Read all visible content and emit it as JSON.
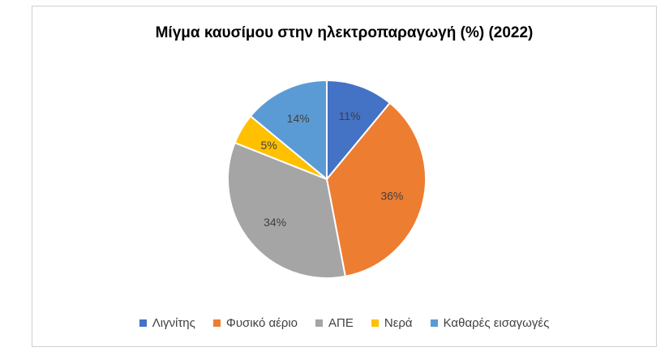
{
  "chart_data": {
    "type": "pie",
    "title": "Μίγμα καυσίμου στην ηλεκτροπαραγωγή (%) (2022)",
    "categories": [
      "Λιγνίτης",
      "Φυσικό αέριο",
      "ΑΠΕ",
      "Νερά",
      "Καθαρές εισαγωγές"
    ],
    "values": [
      11,
      36,
      34,
      5,
      14
    ],
    "labels": [
      "11%",
      "36%",
      "34%",
      "5%",
      "14%"
    ],
    "colors": [
      "#4472C4",
      "#ED7D31",
      "#A5A5A5",
      "#FFC000",
      "#5B9BD5"
    ],
    "legend": "bottom"
  }
}
